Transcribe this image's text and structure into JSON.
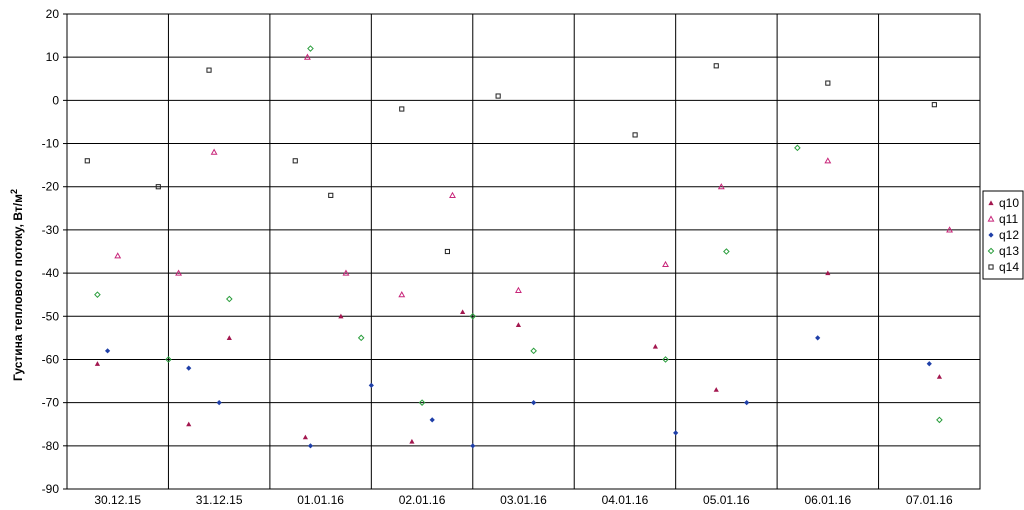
{
  "chart_data": {
    "type": "scatter",
    "ylabel": "Густина теплового потоку, Вт/м",
    "ylabel_sup": "2",
    "ylim": [
      -90,
      20
    ],
    "yticks": [
      20,
      10,
      0,
      -10,
      -20,
      -30,
      -40,
      -50,
      -60,
      -70,
      -80,
      -90
    ],
    "ytick_labels": [
      "20",
      "10",
      "0",
      "-10",
      "-20",
      "-30",
      "-40",
      "-50",
      "-60",
      "-70",
      "-80",
      "-90"
    ],
    "categories": [
      "30.12.15",
      "31.12.15",
      "01.01.16",
      "02.01.16",
      "03.01.16",
      "04.01.16",
      "05.01.16",
      "06.01.16",
      "07.01.16"
    ],
    "category_colors": [
      "#000000",
      "#000000",
      "#000000",
      "#e8191c",
      "#e8191c",
      "#000000",
      "#000000",
      "#000000",
      "#000000"
    ],
    "grid": true,
    "legend_position": "right",
    "series": [
      {
        "name": "q10",
        "marker": "filled-triangle",
        "color": "#a3174f",
        "x": [
          0.3,
          1.2,
          1.6,
          2.35,
          2.7,
          3.4,
          3.9,
          4.45,
          5.8,
          6.4,
          7.5,
          8.6
        ],
        "y": [
          -61,
          -75,
          -55,
          -78,
          -50,
          -79,
          -49,
          -52,
          -57,
          -67,
          -40,
          -64
        ]
      },
      {
        "name": "q11",
        "marker": "open-triangle",
        "color": "#c8267a",
        "x": [
          0.5,
          1.1,
          1.45,
          2.37,
          2.75,
          3.3,
          3.8,
          4.45,
          5.9,
          6.45,
          7.5,
          8.7
        ],
        "y": [
          -36,
          -40,
          -12,
          10,
          -40,
          -45,
          -22,
          -44,
          -38,
          -20,
          -14,
          -30
        ]
      },
      {
        "name": "q12",
        "marker": "filled-diamond",
        "color": "#1f3fa8",
        "x": [
          0.4,
          1.2,
          1.5,
          2.4,
          3.0,
          3.6,
          4.0,
          4.6,
          6.0,
          6.7,
          7.4,
          8.5
        ],
        "y": [
          -58,
          -62,
          -70,
          -80,
          -66,
          -74,
          -80,
          -70,
          -77,
          -70,
          -55,
          -61
        ]
      },
      {
        "name": "q13",
        "marker": "open-diamond",
        "color": "#2a9d3c",
        "x": [
          0.3,
          1.0,
          1.6,
          2.4,
          2.9,
          3.5,
          4.0,
          4.6,
          5.9,
          6.5,
          7.2,
          8.6
        ],
        "y": [
          -45,
          -60,
          -46,
          12,
          -55,
          -70,
          -50,
          -58,
          -60,
          -35,
          -11,
          -74
        ]
      },
      {
        "name": "q14",
        "marker": "open-square",
        "color": "#222222",
        "x": [
          0.2,
          0.9,
          1.4,
          2.25,
          2.6,
          3.3,
          3.75,
          4.25,
          5.6,
          6.4,
          7.5,
          8.55
        ],
        "y": [
          -14,
          -20,
          7,
          -14,
          -22,
          -2,
          -35,
          1,
          -8,
          8,
          4,
          -1
        ]
      }
    ]
  }
}
